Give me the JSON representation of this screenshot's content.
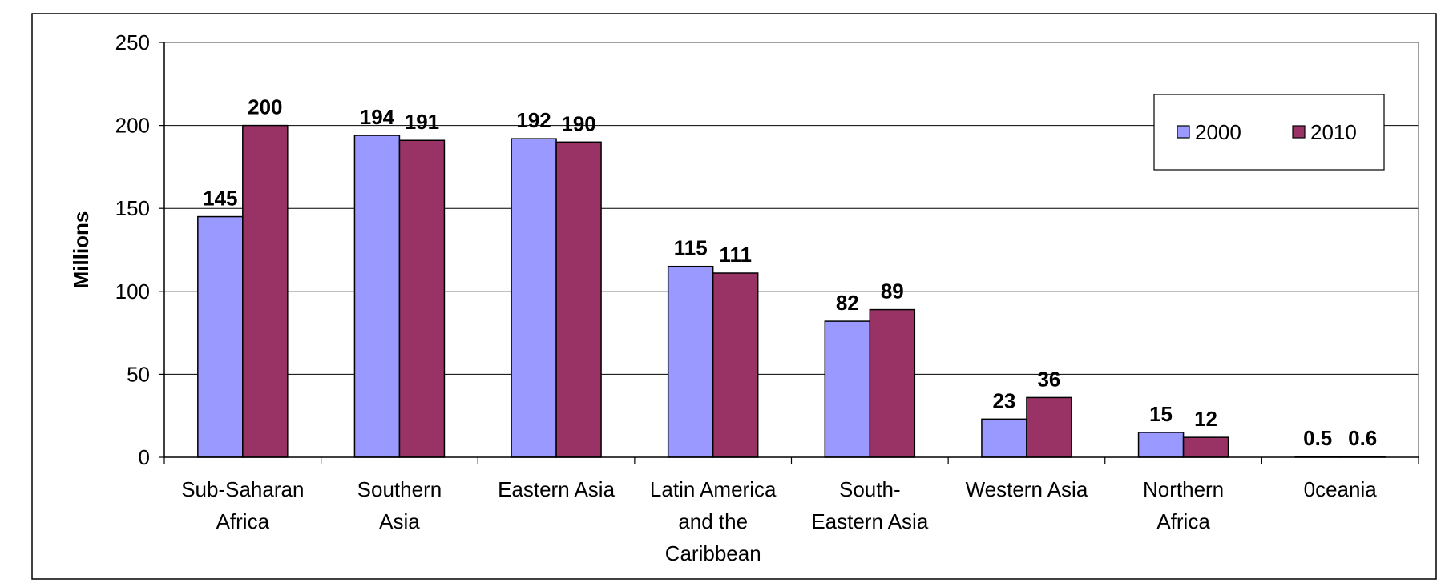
{
  "chart_data": {
    "type": "bar",
    "title": "",
    "xlabel": "",
    "ylabel": "Millions",
    "ylim": [
      0,
      250
    ],
    "yticks": [
      0,
      50,
      100,
      150,
      200,
      250
    ],
    "grid": true,
    "legend_position": "top-right",
    "categories": [
      [
        "Sub-Saharan",
        "Africa"
      ],
      [
        "Southern",
        "Asia"
      ],
      [
        "Eastern Asia"
      ],
      [
        "Latin America",
        "and the",
        "Caribbean"
      ],
      [
        "South-",
        "Eastern Asia"
      ],
      [
        "Western Asia"
      ],
      [
        "Northern",
        "Africa"
      ],
      [
        "0ceania"
      ]
    ],
    "series": [
      {
        "name": "2000",
        "color": "#9999ff",
        "values": [
          145,
          194,
          192,
          115,
          82,
          23,
          15,
          0.5
        ]
      },
      {
        "name": "2010",
        "color": "#993366",
        "values": [
          200,
          191,
          190,
          111,
          89,
          36,
          12,
          0.6
        ]
      }
    ]
  }
}
